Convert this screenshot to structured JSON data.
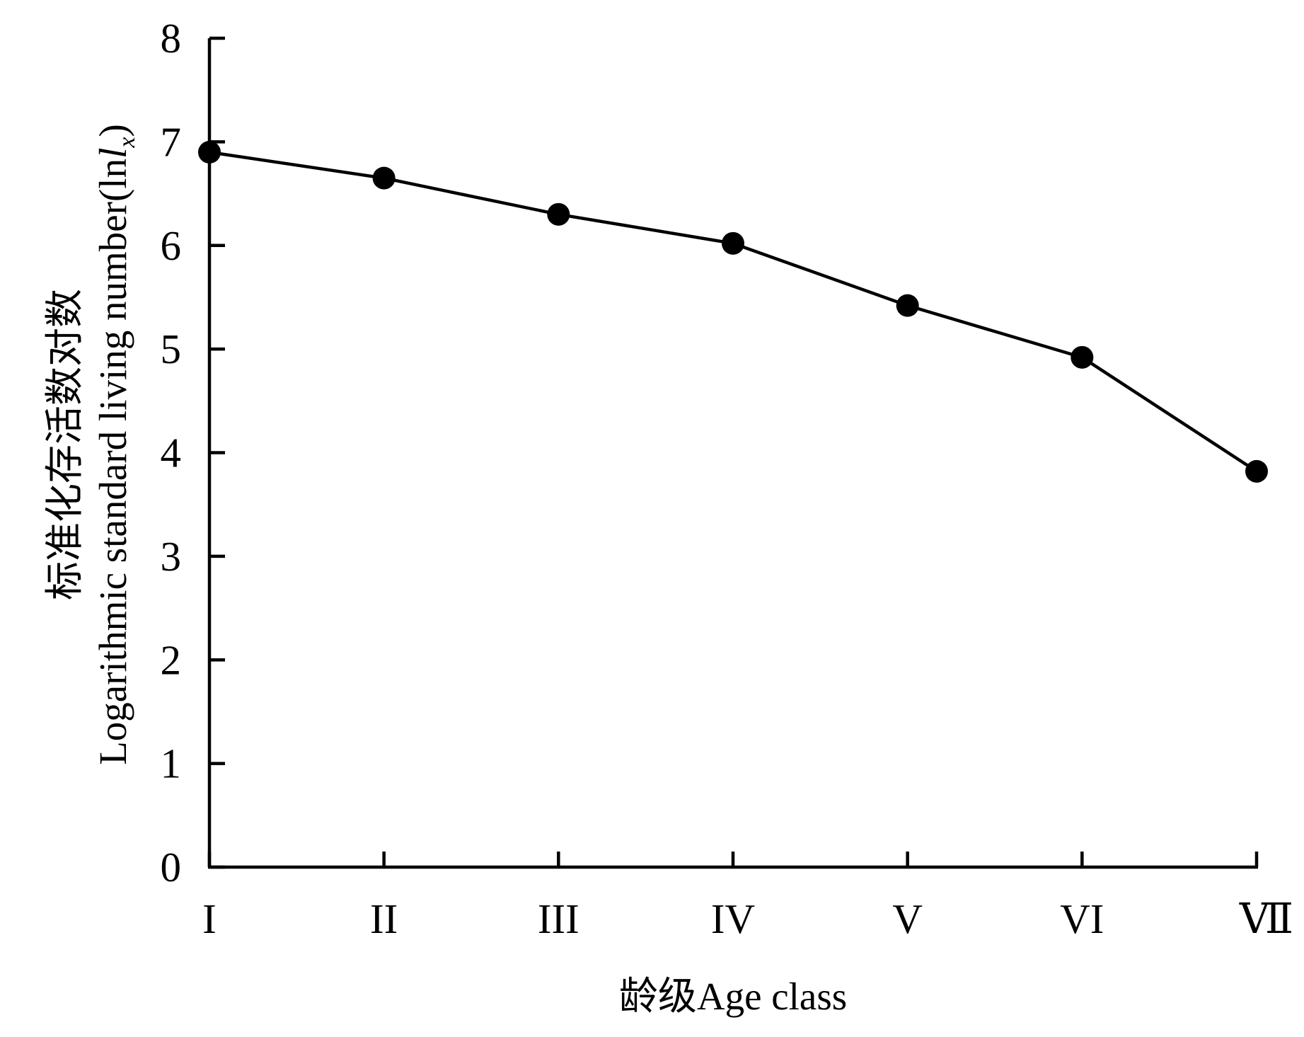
{
  "chart_data": {
    "type": "line",
    "categories": [
      "I",
      "II",
      "III",
      "IV",
      "V",
      "VI",
      "Ⅶ"
    ],
    "series": [
      {
        "values": [
          6.9,
          6.65,
          6.3,
          6.02,
          5.42,
          4.92,
          3.82
        ]
      }
    ],
    "xlabel": "龄级Age class",
    "ylabel": {
      "line1": "标准化存活数对数",
      "line2_prefix": "Logarithmic standard living number(ln",
      "line2_var": "l",
      "line2_sub": "x",
      "line2_suffix": ")"
    },
    "ylim": [
      0,
      8
    ],
    "yticks": [
      0,
      1,
      2,
      3,
      4,
      5,
      6,
      7,
      8
    ],
    "grid": false,
    "marker": "filled-circle",
    "line_color": "#000000",
    "marker_color": "#000000"
  }
}
